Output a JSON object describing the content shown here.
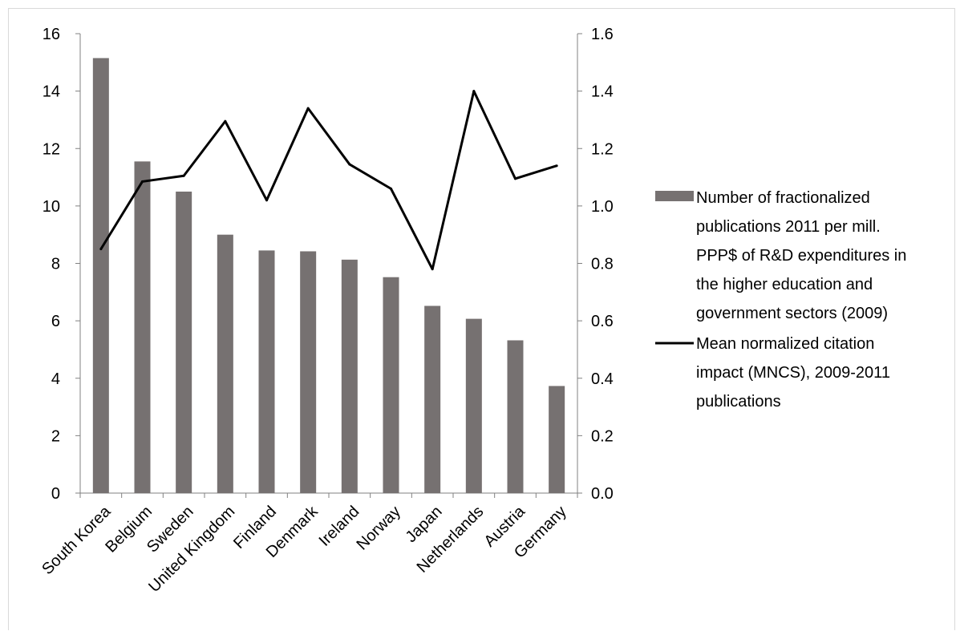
{
  "chart_data": {
    "type": "bar",
    "categories": [
      "South Korea",
      "Belgium",
      "Sweden",
      "United Kingdom",
      "Finland",
      "Denmark",
      "Ireland",
      "Norway",
      "Japan",
      "Netherlands",
      "Austria",
      "Germany"
    ],
    "series": [
      {
        "name": "Number of fractionalized publications 2011 per mill. PPP$ of R&D expenditures in the higher education and government sectors (2009)",
        "type": "bar",
        "axis": "left",
        "color": "#767171",
        "values": [
          15.15,
          11.55,
          10.5,
          9.0,
          8.45,
          8.42,
          8.13,
          7.52,
          6.52,
          6.07,
          5.32,
          3.73
        ]
      },
      {
        "name": "Mean normalized citation impact (MNCS), 2009-2011 publications",
        "type": "line",
        "axis": "right",
        "color": "#000000",
        "values": [
          0.85,
          1.085,
          1.105,
          1.295,
          1.02,
          1.34,
          1.145,
          1.06,
          0.78,
          1.4,
          1.095,
          1.14
        ]
      }
    ],
    "ylim": [
      0,
      16
    ],
    "y2lim": [
      0,
      1.6
    ],
    "yticks": [
      "0",
      "2",
      "4",
      "6",
      "8",
      "10",
      "12",
      "14",
      "16"
    ],
    "y2ticks": [
      "0.0",
      "0.2",
      "0.4",
      "0.6",
      "0.8",
      "1.0",
      "1.2",
      "1.4",
      "1.6"
    ],
    "grid": false,
    "legend_position": "right"
  },
  "legend": {
    "bar_lines": [
      "Number of fractionalized",
      "publications 2011 per mill.",
      "PPP$ of R&D expenditures in",
      "the higher education and",
      "government sectors (2009)"
    ],
    "line_lines": [
      "Mean normalized citation",
      "impact (MNCS), 2009-2011",
      "publications"
    ]
  }
}
